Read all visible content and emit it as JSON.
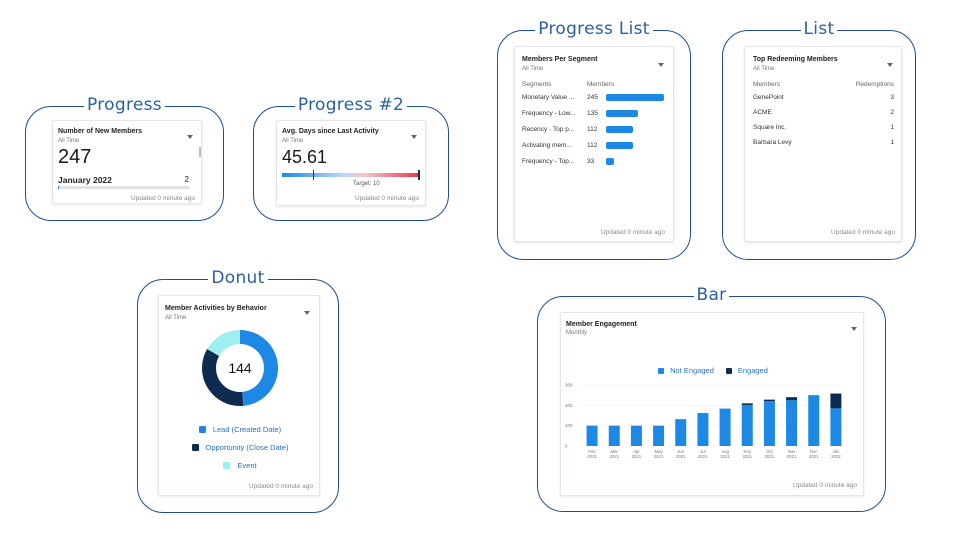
{
  "frames": {
    "progress": "Progress",
    "progress2": "Progress #2",
    "progress_list": "Progress List",
    "list": "List",
    "donut": "Donut",
    "bar": "Bar"
  },
  "updated": "Updated 0 minute ago",
  "progress_card": {
    "title": "Number of New Members",
    "subtitle": "All Time",
    "value": "247",
    "row_label": "January 2022",
    "row_value": "2",
    "row_fraction": 0.01
  },
  "progress2_card": {
    "title": "Avg. Days since Last Activity",
    "subtitle": "All Time",
    "value": "45.61",
    "target_label": "Target: 10",
    "colors": {
      "low": "#1e88e5",
      "high": "#e53950"
    }
  },
  "segments_card": {
    "title": "Members Per Segment",
    "subtitle": "All Time",
    "col_segments": "Segments",
    "col_members": "Members",
    "rows": [
      {
        "name": "Monetary Value ...",
        "value": "245",
        "fraction": 1.0
      },
      {
        "name": "Frequency - Low...",
        "value": "135",
        "fraction": 0.55
      },
      {
        "name": "Recency - Top p...",
        "value": "112",
        "fraction": 0.46
      },
      {
        "name": "Activating mem...",
        "value": "112",
        "fraction": 0.46
      },
      {
        "name": "Frequency - Top...",
        "value": "33",
        "fraction": 0.13
      }
    ],
    "bar_color": "#1e88e5"
  },
  "redeem_card": {
    "title": "Top Redeeming Members",
    "subtitle": "All Time",
    "col_members": "Members",
    "col_redemptions": "Redemptions",
    "rows": [
      {
        "name": "GenePoint",
        "value": "3"
      },
      {
        "name": "ACME",
        "value": "2"
      },
      {
        "name": "Square Inc.",
        "value": "1"
      },
      {
        "name": "Barbara Levy",
        "value": "1"
      }
    ]
  },
  "donut_card": {
    "title": "Member Activities by Behavior",
    "subtitle": "All Time",
    "center": "144",
    "legend": [
      {
        "label": "Lead (Created Date)",
        "color": "#1e88e5"
      },
      {
        "label": "Opportunity (Close Date)",
        "color": "#0d2c4f"
      },
      {
        "label": "Event",
        "color": "#9ef0f0"
      }
    ]
  },
  "bar_card": {
    "title": "Member Engagement",
    "subtitle": "Monthly",
    "legend": [
      {
        "label": "Not Engaged",
        "color": "#1e88e5"
      },
      {
        "label": "Engaged",
        "color": "#0d2c4f"
      }
    ]
  },
  "chart_data": [
    {
      "type": "pie",
      "center_label": "144",
      "categories": [
        "Lead (Created Date)",
        "Opportunity (Close Date)",
        "Event"
      ],
      "values": [
        70,
        50,
        24
      ],
      "colors": [
        "#1e88e5",
        "#0d2c4f",
        "#9ef0f0"
      ]
    },
    {
      "type": "bar",
      "stacked": true,
      "categories": [
        "Feb 2021",
        "Mar 2021",
        "Apr 2021",
        "May 2021",
        "Jun 2021",
        "Jul 2021",
        "Aug 2021",
        "Sep 2021",
        "Oct 2021",
        "Nov 2021",
        "Dec 2021",
        "Jan 2022"
      ],
      "x_ticks": [
        [
          "Feb",
          "2021"
        ],
        [
          "Mar",
          "2021"
        ],
        [
          "Apr",
          "2021"
        ],
        [
          "May",
          "2021"
        ],
        [
          "Jun",
          "2021"
        ],
        [
          "Jul",
          "2021"
        ],
        [
          "Aug",
          "2021"
        ],
        [
          "Sep",
          "2021"
        ],
        [
          "Oct",
          "2021"
        ],
        [
          "Nov",
          "2021"
        ],
        [
          "Dec",
          "2021"
        ],
        [
          "Jan",
          "2022"
        ]
      ],
      "series": [
        {
          "name": "Not Engaged",
          "color": "#1e88e5",
          "values": [
            100,
            100,
            100,
            100,
            132,
            162,
            184,
            202,
            220,
            225,
            250,
            185
          ]
        },
        {
          "name": "Engaged",
          "color": "#0d2c4f",
          "values": [
            0,
            0,
            0,
            0,
            0,
            0,
            0,
            8,
            8,
            15,
            0,
            73
          ]
        }
      ],
      "y_ticks": [
        0,
        100,
        200,
        300
      ],
      "ylim": [
        0,
        300
      ],
      "legend": "top"
    }
  ]
}
